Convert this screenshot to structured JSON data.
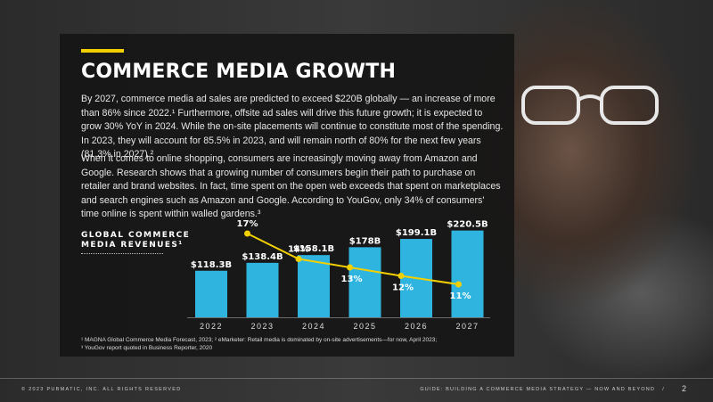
{
  "slide": {
    "title": "COMMERCE MEDIA GROWTH",
    "paragraph1": "By 2027, commerce media ad sales are predicted to exceed $220B globally — an increase of more than 86% since 2022.¹ Furthermore, offsite ad sales will drive this future growth; it is expected to grow 30% YoY in 2024. While the on-site placements will continue to constitute most of the spending. In 2023, they will account for 85.5% in 2023, and will remain north of 80% for the next few years (81.3% in 2027).²",
    "paragraph2": "When it comes to online shopping, consumers are increasingly moving away from Amazon and Google. Research shows that a growing number of consumers begin their path to purchase on retailer and brand websites. In fact, time spent on the open web exceeds that spent on marketplaces and search engines such as Amazon and Google. According to YouGov, only 34% of consumers' time online is spent within walled gardens.³",
    "chart_label_line1": "GLOBAL COMMERCE",
    "chart_label_line2": "MEDIA REVENUES¹",
    "footnote1": "¹ MAGNA Global Commerce Media Forecast, 2023;  ² eMarketer: Retail media is dominated by on-site advertisements—for now, April 2023;",
    "footnote2": "³ YouGov report quoted in Business Reporter, 2020"
  },
  "footer": {
    "copyright": "© 2023 PUBMATIC, INC. ALL RIGHTS RESERVED",
    "guide": "GUIDE: BUILDING A COMMERCE MEDIA STRATEGY — NOW AND BEYOND",
    "separator": "/",
    "page": "2"
  },
  "colors": {
    "bar": "#2fb4e0",
    "line": "#f2d000",
    "accent": "#f2d000"
  },
  "chart_data": {
    "type": "bar",
    "categories": [
      "2022",
      "2023",
      "2024",
      "2025",
      "2026",
      "2027"
    ],
    "series": [
      {
        "values": [
          118.3,
          138.4,
          158.1,
          178,
          199.1,
          220.5
        ],
        "labels": [
          "$118.3B",
          "$138.4B",
          "$158.1B",
          "$178B",
          "$199.1B",
          "$220.5B"
        ]
      },
      {
        "type": "line",
        "x": [
          "2023",
          "2024",
          "2025",
          "2026",
          "2027"
        ],
        "values": [
          17,
          14,
          13,
          12,
          11
        ],
        "labels": [
          "17%",
          "14%",
          "13%",
          "12%",
          "11%"
        ]
      }
    ],
    "ylim": [
      0,
      240
    ],
    "grid": false
  }
}
